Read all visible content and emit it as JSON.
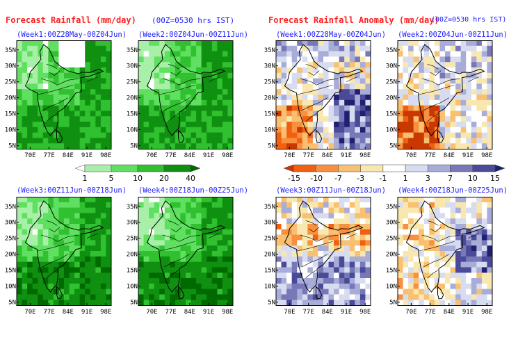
{
  "header": {
    "left_title": "Forecast Rainfall (mm/day)",
    "left_note": "(00Z=0530 hrs IST)",
    "right_title": "Forecast Rainfall Anomaly (mm/day)",
    "right_note": "(00Z=0530 hrs IST)"
  },
  "weeks": [
    "(Week1:00Z28May-00Z04Jun)",
    "(Week2:00Z04Jun-00Z11Jun)",
    "(Week3:00Z11Jun-00Z18Jun)",
    "(Week4:00Z18Jun-00Z25Jun)"
  ],
  "axes": {
    "lat_labels": [
      "35N",
      "30N",
      "25N",
      "20N",
      "15N",
      "10N",
      "5N"
    ],
    "lon_labels": [
      "70E",
      "77E",
      "84E",
      "91E",
      "98E"
    ]
  },
  "rain_colorbar": {
    "levels": [
      "1",
      "5",
      "10",
      "20",
      "40"
    ],
    "colors": [
      "#ffffff",
      "#a8f0a8",
      "#60e060",
      "#30c030",
      "#109010",
      "#006a00"
    ]
  },
  "anomaly_colorbar": {
    "levels": [
      "-15",
      "-10",
      "-7",
      "-3",
      "-1",
      "1",
      "3",
      "7",
      "10",
      "15"
    ],
    "colors": [
      "#c83800",
      "#f06010",
      "#f89040",
      "#f8c070",
      "#f8e8b0",
      "#ffffff",
      "#d8dcf0",
      "#a8acd8",
      "#7878b8",
      "#4a4a98",
      "#202070"
    ]
  },
  "colors": {
    "title_red": "#ff2020",
    "title_blue": "#2020ff"
  }
}
